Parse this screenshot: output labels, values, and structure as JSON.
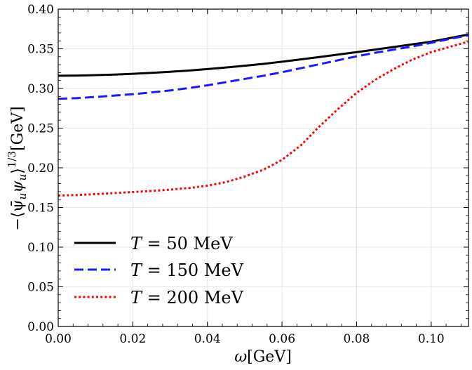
{
  "chart_data": {
    "type": "line",
    "title": "",
    "xlabel": "ω[GeV]",
    "ylabel": "−⟨ψ̄uψu⟩1/3[GeV]",
    "ylabel_main": "−⟨ψ̄",
    "ylabel_sub1": "u",
    "ylabel_mid": "ψ",
    "ylabel_sub2": "u",
    "ylabel_close": "⟩",
    "ylabel_sup": "1/3",
    "ylabel_unit": "[GeV]",
    "xlim": [
      0.0,
      0.11
    ],
    "ylim": [
      0.0,
      0.4
    ],
    "grid": true,
    "legend_position": "lower-left",
    "x_ticks": [
      "0.00",
      "0.02",
      "0.04",
      "0.06",
      "0.08",
      "0.10"
    ],
    "y_ticks": [
      "0.00",
      "0.05",
      "0.10",
      "0.15",
      "0.20",
      "0.25",
      "0.30",
      "0.35",
      "0.40"
    ],
    "x": [
      0.0,
      0.005,
      0.01,
      0.015,
      0.02,
      0.025,
      0.03,
      0.035,
      0.04,
      0.045,
      0.05,
      0.055,
      0.06,
      0.065,
      0.07,
      0.075,
      0.08,
      0.085,
      0.09,
      0.095,
      0.1,
      0.105,
      0.11
    ],
    "series": [
      {
        "name": "T = 50 MeV",
        "color": "#000000",
        "style": "solid",
        "values": [
          0.316,
          0.3163,
          0.3168,
          0.3175,
          0.3185,
          0.3197,
          0.321,
          0.3226,
          0.3244,
          0.3264,
          0.3286,
          0.331,
          0.3337,
          0.3366,
          0.3396,
          0.3427,
          0.3458,
          0.349,
          0.3523,
          0.3557,
          0.359,
          0.3635,
          0.368
        ]
      },
      {
        "name": "T = 150 MeV",
        "color": "#1a1aff",
        "style": "dashed",
        "values": [
          0.287,
          0.2878,
          0.2893,
          0.291,
          0.2928,
          0.295,
          0.2975,
          0.3005,
          0.304,
          0.308,
          0.312,
          0.316,
          0.3205,
          0.3255,
          0.3305,
          0.3355,
          0.3405,
          0.345,
          0.349,
          0.353,
          0.3575,
          0.3625,
          0.367
        ]
      },
      {
        "name": "T = 200 MeV",
        "color": "#ff0000",
        "style": "dotted",
        "values": [
          0.165,
          0.1657,
          0.1668,
          0.1681,
          0.1695,
          0.1708,
          0.1725,
          0.1745,
          0.1775,
          0.182,
          0.189,
          0.1975,
          0.21,
          0.228,
          0.252,
          0.274,
          0.2945,
          0.311,
          0.3245,
          0.3365,
          0.3458,
          0.3525,
          0.359
        ]
      }
    ],
    "legend": [
      {
        "prefix": "T",
        "value": " = 50 MeV"
      },
      {
        "prefix": "T",
        "value": " = 150 MeV"
      },
      {
        "prefix": "T",
        "value": " = 200 MeV"
      }
    ]
  }
}
